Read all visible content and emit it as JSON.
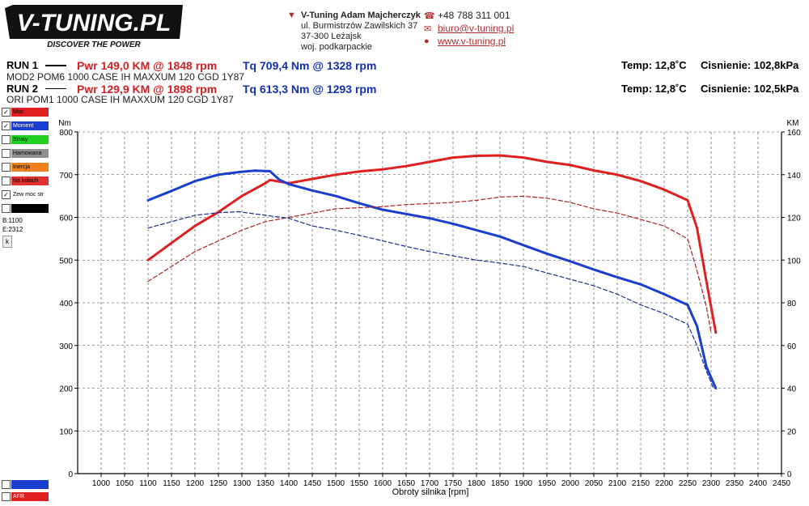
{
  "brand": {
    "logo_text": "V-TUNING.PL",
    "slogan": "DISCOVER THE POWER"
  },
  "contact": {
    "company": "V-Tuning Adam Majcherczyk",
    "street": "ul. Burmistrzów Zawilskich 37",
    "city": "37-300 Leżajsk",
    "region": "woj. podkarpackie",
    "phone": "+48 788 311 001",
    "email": "biuro@v-tuning.pl",
    "website": "www.v-tuning.pl"
  },
  "runs": [
    {
      "label": "RUN 1",
      "pwr": "Pwr  149,0 KM @ 1848 rpm",
      "tq": "Tq 709,4 Nm @ 1328 rpm",
      "desc": "MOD2 POM6 1000 CASE IH MAXXUM 120 CGD 1Y87",
      "temp": "Temp: 12,8˚C",
      "pressure": "Cisnienie: 102,8kPa",
      "line_style": "solid"
    },
    {
      "label": "RUN 2",
      "pwr": "Pwr  129,9 KM @ 1898 rpm",
      "tq": "Tq 613,3 Nm @ 1293 rpm",
      "desc": "ORI POM1 1000 CASE IH MAXXUM 120 CGD 1Y87",
      "temp": "Temp: 12,8˚C",
      "pressure": "Cisnienie: 102,5kPa",
      "line_style": "dashed"
    }
  ],
  "legend": {
    "items": [
      {
        "label": "Moc",
        "checked": true,
        "color": "#e02020"
      },
      {
        "label": "Moment",
        "checked": true,
        "color": "#1a3fd0"
      },
      {
        "label": "Straty",
        "checked": false,
        "color": "#20d020"
      },
      {
        "label": "Hamowana",
        "checked": false,
        "color": "#909090"
      },
      {
        "label": "Inercja",
        "checked": false,
        "color": "#f08020"
      },
      {
        "label": "Na kołach",
        "checked": false,
        "color": "#e03030"
      },
      {
        "label": "Zew moc str",
        "checked": true,
        "color": "#ffffff"
      },
      {
        "label": "",
        "checked": false,
        "color": "#000000"
      }
    ],
    "b_value": "B:1100",
    "e_value": "E:2312",
    "k_button": "k",
    "bottom_items": [
      {
        "label": "",
        "checked": false,
        "color": "#1a3fd0"
      },
      {
        "label": "AFR",
        "checked": false,
        "color": "#e02020"
      }
    ]
  },
  "chart_data": {
    "type": "line",
    "xlabel": "Obroty silnika [rpm]",
    "ylabel_left": "Nm",
    "ylabel_right": "KM",
    "xlim": [
      950,
      2450
    ],
    "x_ticks": [
      1000,
      1050,
      1100,
      1150,
      1200,
      1250,
      1300,
      1350,
      1400,
      1450,
      1500,
      1550,
      1600,
      1650,
      1700,
      1750,
      1800,
      1850,
      1900,
      1950,
      2000,
      2050,
      2100,
      2150,
      2200,
      2250,
      2300,
      2350,
      2400,
      2450
    ],
    "ylim_left": [
      0,
      800
    ],
    "y_ticks_left": [
      0,
      100,
      200,
      300,
      400,
      500,
      600,
      700,
      800
    ],
    "ylim_right": [
      0,
      160
    ],
    "y_ticks_right": [
      0,
      20,
      40,
      60,
      80,
      100,
      120,
      140,
      160
    ],
    "grid": true,
    "series": [
      {
        "axis": "right",
        "color": "#e02020",
        "style": "solid",
        "width": 3,
        "x": [
          1100,
          1150,
          1200,
          1250,
          1300,
          1350,
          1360,
          1400,
          1450,
          1500,
          1550,
          1600,
          1650,
          1700,
          1750,
          1800,
          1850,
          1900,
          1950,
          2000,
          2050,
          2100,
          2150,
          2200,
          2250,
          2270,
          2290,
          2310
        ],
        "values": [
          100,
          108,
          116,
          122.5,
          130,
          136,
          137.5,
          136,
          138,
          140,
          141.5,
          142.5,
          144,
          146,
          148,
          148.8,
          149,
          148,
          146,
          144.5,
          142,
          140,
          137,
          133,
          128,
          115,
          90,
          66
        ]
      },
      {
        "axis": "left",
        "color": "#1a3fd0",
        "style": "solid",
        "width": 3,
        "x": [
          1100,
          1150,
          1200,
          1250,
          1300,
          1328,
          1360,
          1380,
          1400,
          1450,
          1500,
          1550,
          1600,
          1650,
          1700,
          1750,
          1800,
          1850,
          1900,
          1950,
          2000,
          2050,
          2100,
          2150,
          2200,
          2250,
          2270,
          2290,
          2310
        ],
        "values": [
          640,
          662,
          685,
          700,
          707,
          709.4,
          708,
          688,
          678,
          663,
          650,
          633,
          618,
          608,
          598,
          585,
          570,
          555,
          535,
          515,
          497,
          478,
          460,
          443,
          420,
          395,
          345,
          250,
          200
        ]
      },
      {
        "axis": "right",
        "color": "#b02020",
        "style": "dashed",
        "width": 1.2,
        "x": [
          1100,
          1150,
          1200,
          1250,
          1300,
          1350,
          1400,
          1450,
          1500,
          1550,
          1600,
          1650,
          1700,
          1750,
          1800,
          1850,
          1900,
          1950,
          2000,
          2050,
          2100,
          2150,
          2200,
          2250,
          2270,
          2290,
          2300
        ],
        "values": [
          90,
          97,
          104,
          109,
          114,
          118,
          120,
          122,
          124,
          124.5,
          125,
          126,
          126.5,
          127,
          128,
          129.5,
          129.9,
          129,
          127,
          124,
          122,
          119,
          116,
          110,
          95,
          78,
          66
        ]
      },
      {
        "axis": "left",
        "color": "#1a3090",
        "style": "dashed",
        "width": 1.2,
        "x": [
          1100,
          1150,
          1200,
          1250,
          1293,
          1350,
          1400,
          1450,
          1500,
          1550,
          1600,
          1650,
          1700,
          1750,
          1800,
          1850,
          1900,
          1950,
          2000,
          2050,
          2100,
          2150,
          2200,
          2250,
          2270,
          2290,
          2305
        ],
        "values": [
          575,
          590,
          605,
          611,
          613.3,
          605,
          598,
          580,
          570,
          558,
          545,
          532,
          520,
          510,
          500,
          493,
          485,
          470,
          455,
          440,
          420,
          395,
          375,
          350,
          300,
          240,
          200
        ]
      }
    ]
  }
}
